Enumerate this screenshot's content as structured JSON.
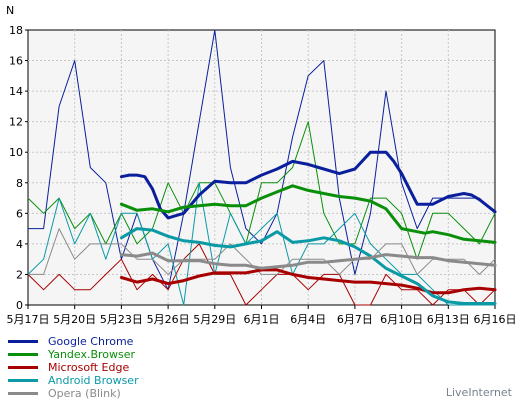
{
  "chart_data": {
    "type": "line",
    "ylabel": "N",
    "ylim": [
      0,
      18
    ],
    "yticks": [
      "0",
      "2",
      "4",
      "6",
      "8",
      "10",
      "12",
      "14",
      "16",
      "18"
    ],
    "xticks": [
      "5月17日",
      "5月20日",
      "5月23日",
      "5月26日",
      "5月29日",
      "6月1日",
      "6月4日",
      "6月7日",
      "6月10日",
      "6月13日",
      "6月16日"
    ],
    "xlim": [
      0,
      30
    ],
    "grid": true,
    "legend_position": "bottom-left",
    "series": [
      {
        "name": "Google Chrome",
        "color": "#0a1f9c",
        "x": [
          0,
          1,
          2,
          3,
          4,
          5,
          6,
          7,
          8,
          9,
          10,
          11,
          12,
          13,
          14,
          15,
          16,
          17,
          18,
          19,
          20,
          21,
          22,
          23,
          24,
          25,
          26,
          27,
          28,
          29,
          30
        ],
        "daily": [
          5,
          5,
          13,
          16,
          9,
          8,
          3,
          6,
          3,
          1,
          6,
          12,
          18,
          9,
          5,
          4,
          6,
          11,
          15,
          16,
          7,
          2,
          6,
          14,
          8,
          5,
          7,
          7,
          7,
          7,
          6
        ],
        "avg_x": [
          6,
          6.5,
          7,
          7.5,
          8,
          8.5,
          9,
          10,
          11,
          12,
          13,
          14,
          15,
          16,
          17,
          18,
          19,
          20,
          21,
          22,
          22.5,
          23,
          23.5,
          24,
          24.5,
          25,
          26,
          27,
          28,
          28.5,
          29,
          30
        ],
        "avg": [
          8.4,
          8.5,
          8.5,
          8.4,
          7.6,
          6.3,
          5.7,
          6,
          7.2,
          8.1,
          8,
          8,
          8.5,
          8.9,
          9.4,
          9.2,
          8.9,
          8.6,
          8.9,
          10,
          10,
          10,
          9.4,
          8.6,
          7.6,
          6.6,
          6.6,
          7.1,
          7.3,
          7.2,
          6.9,
          6.1
        ]
      },
      {
        "name": "Yandex.Browser",
        "color": "#0a8f0a",
        "x": [
          0,
          1,
          2,
          3,
          4,
          5,
          6,
          7,
          8,
          9,
          10,
          11,
          12,
          13,
          14,
          15,
          16,
          17,
          18,
          19,
          20,
          21,
          22,
          23,
          24,
          25,
          26,
          27,
          28,
          29,
          30
        ],
        "daily": [
          7,
          6,
          7,
          5,
          6,
          4,
          6,
          4,
          5,
          8,
          6,
          8,
          8,
          6,
          4,
          8,
          8,
          9,
          12,
          6,
          4,
          4,
          7,
          7,
          6,
          3,
          6,
          6,
          5,
          4,
          6
        ],
        "avg_x": [
          6,
          7,
          8,
          9,
          10,
          11,
          12,
          13,
          14,
          15,
          16,
          17,
          18,
          19,
          20,
          21,
          22,
          23,
          24,
          25,
          25.5,
          26,
          27,
          28,
          29,
          30
        ],
        "avg": [
          6.6,
          6.2,
          6.3,
          6.1,
          6.4,
          6.5,
          6.6,
          6.5,
          6.5,
          7,
          7.4,
          7.8,
          7.5,
          7.3,
          7.1,
          7,
          6.8,
          6.3,
          5,
          4.8,
          4.7,
          4.8,
          4.6,
          4.3,
          4.2,
          4.1
        ]
      },
      {
        "name": "Microsoft Edge",
        "color": "#a80000",
        "x": [
          0,
          1,
          2,
          3,
          4,
          5,
          6,
          7,
          8,
          9,
          10,
          11,
          12,
          13,
          14,
          15,
          16,
          17,
          18,
          19,
          20,
          21,
          22,
          23,
          24,
          25,
          26,
          27,
          28,
          29,
          30
        ],
        "daily": [
          2,
          1,
          2,
          1,
          1,
          2,
          3,
          1,
          2,
          1,
          3,
          4,
          2,
          2,
          0,
          1,
          2,
          2,
          1,
          2,
          2,
          0,
          0,
          2,
          1,
          1,
          0,
          1,
          1,
          0,
          1
        ],
        "avg_x": [
          6,
          7,
          8,
          9,
          10,
          11,
          12,
          13,
          14,
          15,
          16,
          17,
          18,
          19,
          20,
          21,
          22,
          23,
          24,
          25,
          26,
          27,
          28,
          29,
          30
        ],
        "avg": [
          1.8,
          1.5,
          1.7,
          1.4,
          1.6,
          1.9,
          2.1,
          2.1,
          2.1,
          2.3,
          2.3,
          2,
          1.8,
          1.7,
          1.6,
          1.5,
          1.5,
          1.4,
          1.3,
          1.1,
          0.8,
          0.8,
          1,
          1.1,
          1
        ]
      },
      {
        "name": "Android Browser",
        "color": "#0a9aa6",
        "x": [
          0,
          1,
          2,
          3,
          4,
          5,
          6,
          7,
          8,
          9,
          10,
          11,
          12,
          13,
          14,
          15,
          16,
          17,
          18,
          19,
          20,
          21,
          22,
          23,
          24,
          25,
          26,
          27,
          28,
          29,
          30
        ],
        "daily": [
          2,
          3,
          7,
          4,
          6,
          3,
          6,
          6,
          3,
          4,
          0,
          8,
          2,
          6,
          4,
          5,
          6,
          2,
          4,
          4,
          5,
          6,
          4,
          3,
          2,
          2,
          1,
          0,
          0,
          0,
          0
        ],
        "avg_x": [
          6,
          7,
          8,
          9,
          10,
          11,
          12,
          13,
          14,
          15,
          16,
          17,
          18,
          19,
          20,
          21,
          22,
          23,
          24,
          25,
          26,
          27,
          28,
          29,
          30
        ],
        "avg": [
          4.4,
          5,
          4.9,
          4.5,
          4.2,
          4.1,
          3.9,
          3.8,
          4,
          4.2,
          4.8,
          4.1,
          4.2,
          4.4,
          4.2,
          3.8,
          3.2,
          2.4,
          1.9,
          1.4,
          0.6,
          0.2,
          0.1,
          0.1,
          0.1
        ]
      },
      {
        "name": "Opera (Blink)",
        "color": "#8a8a8a",
        "x": [
          0,
          1,
          2,
          3,
          4,
          5,
          6,
          7,
          8,
          9,
          10,
          11,
          12,
          13,
          14,
          15,
          16,
          17,
          18,
          19,
          20,
          21,
          22,
          23,
          24,
          25,
          26,
          27,
          28,
          29,
          30
        ],
        "daily": [
          2,
          2,
          5,
          3,
          4,
          4,
          4,
          3,
          3,
          2,
          3,
          3,
          3,
          4,
          3,
          2,
          2,
          3,
          3,
          3,
          2,
          3,
          3,
          4,
          4,
          2,
          3,
          3,
          3,
          2,
          3
        ],
        "avg_x": [
          6,
          7,
          8,
          9,
          10,
          11,
          12,
          13,
          14,
          15,
          16,
          17,
          18,
          19,
          20,
          21,
          22,
          23,
          24,
          25,
          26,
          27,
          28,
          29,
          30
        ],
        "avg": [
          3.3,
          3.2,
          3.4,
          2.9,
          2.9,
          2.9,
          2.7,
          2.6,
          2.6,
          2.4,
          2.5,
          2.6,
          2.8,
          2.8,
          2.9,
          3,
          3.1,
          3.3,
          3.2,
          3.1,
          3.1,
          2.9,
          2.8,
          2.7,
          2.6
        ]
      }
    ]
  },
  "branding": {
    "text": "LiveInternet"
  }
}
